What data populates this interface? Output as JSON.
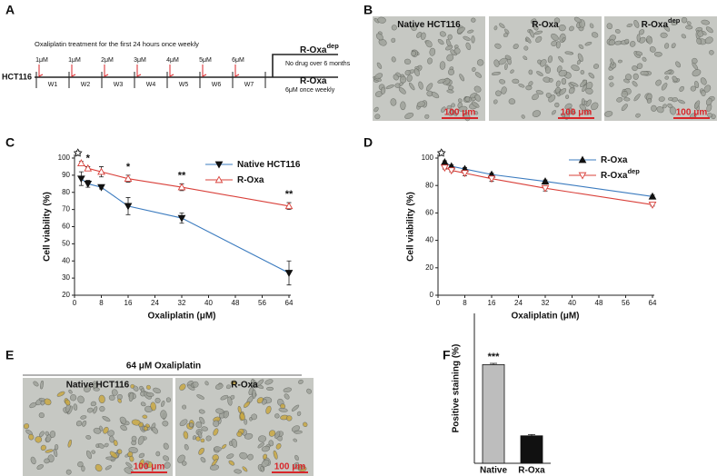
{
  "panel_letters": [
    "A",
    "B",
    "C",
    "D",
    "E",
    "F"
  ],
  "timeline": {
    "note": "Oxaliplatin treatment for the first 24 hours once weekly",
    "start": "HCT116",
    "doses": [
      "1μM",
      "1μM",
      "2μM",
      "3μM",
      "4μM",
      "5μM",
      "6μM"
    ],
    "weeks": [
      "W1",
      "W2",
      "W3",
      "W4",
      "W5",
      "W6",
      "W7"
    ],
    "branches": [
      {
        "name": "R-Oxa",
        "superscript": "dep",
        "detail": "No drug over 6 months"
      },
      {
        "name": "R-Oxa",
        "detail": "6μM once weekly"
      }
    ]
  },
  "micrographs_b": {
    "labels": [
      {
        "name": "Native HCT116"
      },
      {
        "name": "R-Oxa"
      },
      {
        "name": "R-Oxa",
        "superscript": "dep"
      }
    ],
    "scale_bar": "100 μm"
  },
  "micrographs_e": {
    "title": "64 μM Oxaliplatin",
    "labels": [
      "Native HCT116",
      "R-Oxa"
    ],
    "scale_bar": "100 μm"
  },
  "chart_data": [
    {
      "type": "line",
      "xlabel": "Oxaliplatin (μM)",
      "ylabel": "Cell viability (%)",
      "x": [
        2,
        4,
        8,
        16,
        32,
        64
      ],
      "series": [
        {
          "name": "Native HCT116",
          "color": "#3b7bbf",
          "marker": "down-filled",
          "values": [
            88,
            85,
            83,
            72,
            65,
            33
          ],
          "errors": [
            4,
            2,
            1,
            5,
            3,
            7
          ]
        },
        {
          "name": "R-Oxa",
          "color": "#d9403a",
          "marker": "up-open",
          "values": [
            97,
            94,
            92,
            88,
            83,
            72
          ],
          "errors": [
            1,
            1,
            3,
            2,
            2,
            2
          ]
        }
      ],
      "xlim": [
        0,
        64
      ],
      "xticks": [
        0,
        8,
        16,
        24,
        32,
        40,
        48,
        56,
        64
      ],
      "ylim": [
        20,
        100
      ],
      "yticks": [
        20,
        30,
        40,
        50,
        60,
        70,
        80,
        90,
        100
      ],
      "legend": "upper right",
      "annotations": [
        {
          "text": "✩",
          "x": 1,
          "y": 100
        },
        {
          "text": "*",
          "x": 4,
          "y": 97
        },
        {
          "text": "*",
          "x": 16,
          "y": 92
        },
        {
          "text": "**",
          "x": 32,
          "y": 87
        },
        {
          "text": "**",
          "x": 64,
          "y": 76
        }
      ]
    },
    {
      "type": "line",
      "xlabel": "Oxaliplatin (μM)",
      "ylabel": "Cell viability (%)",
      "x": [
        2,
        4,
        8,
        16,
        32,
        64
      ],
      "series": [
        {
          "name": "R-Oxa",
          "color": "#3b7bbf",
          "marker": "up-filled",
          "values": [
            97,
            94,
            92,
            88,
            83,
            72
          ],
          "errors": [
            1,
            1,
            1,
            1,
            1,
            1
          ]
        },
        {
          "name": "R-Oxa",
          "superscript": "dep",
          "color": "#d9403a",
          "marker": "down-open",
          "values": [
            93,
            91,
            89,
            85,
            78,
            66
          ],
          "errors": [
            1,
            1,
            2,
            2,
            2,
            1
          ]
        }
      ],
      "xlim": [
        0,
        64
      ],
      "xticks": [
        0,
        8,
        16,
        24,
        32,
        40,
        48,
        56,
        64
      ],
      "ylim": [
        0,
        100
      ],
      "yticks": [
        0,
        20,
        40,
        60,
        80,
        100
      ],
      "legend": "upper right",
      "annotations": [
        {
          "text": "✩",
          "x": 1,
          "y": 100
        }
      ]
    },
    {
      "type": "bar",
      "ylabel": "Positive staining (%)",
      "categories": [
        "Native",
        "R-Oxa"
      ],
      "values": [
        79,
        22
      ],
      "errors": [
        1,
        1
      ],
      "colors": [
        "#bdbdbd",
        "#111111"
      ],
      "ylim": [
        0,
        120
      ],
      "annotations": [
        {
          "text": "***",
          "category": 0
        }
      ]
    }
  ]
}
